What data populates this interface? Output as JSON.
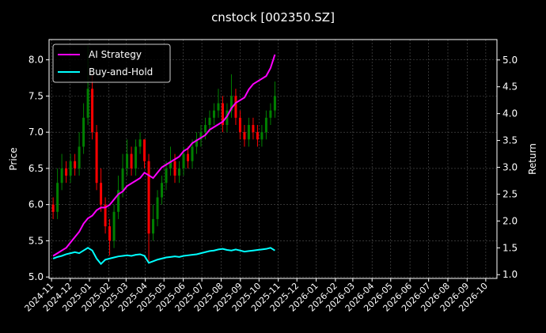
{
  "chart_data": {
    "type": "line",
    "title": "cnstock [002350.SZ]",
    "ylabel_left": "Price",
    "ylabel_right": "Return",
    "xlabel": "",
    "ylim_left": [
      4.98,
      8.28
    ],
    "ylim_right": [
      0.93,
      5.38
    ],
    "xlim": [
      "2024-10-28",
      "2026-10-19"
    ],
    "grid": true,
    "legend_position": "top-left",
    "yticks_left": [
      "5.0",
      "5.5",
      "6.0",
      "6.5",
      "7.0",
      "7.5",
      "8.0"
    ],
    "yticks_right": [
      "1.0",
      "1.5",
      "2.0",
      "2.5",
      "3.0",
      "3.5",
      "4.0",
      "4.5",
      "5.0"
    ],
    "xticks": [
      "2024-11",
      "2024-12",
      "2025-01",
      "2025-02",
      "2025-03",
      "2025-04",
      "2025-05",
      "2025-06",
      "2025-07",
      "2025-08",
      "2025-09",
      "2025-10",
      "2025-11",
      "2025-12",
      "2026-01",
      "2026-02",
      "2026-03",
      "2026-04",
      "2026-05",
      "2026-06",
      "2026-07",
      "2026-08",
      "2026-09",
      "2026-10"
    ],
    "colors": {
      "up": "#008000",
      "down": "#ff0000",
      "strategy": "#ff00ff",
      "buyhold": "#00ffff",
      "background": "#000000"
    },
    "candles": {
      "dates": [
        "2024-11-01",
        "2024-11-08",
        "2024-11-15",
        "2024-11-22",
        "2024-11-29",
        "2024-12-06",
        "2024-12-13",
        "2024-12-20",
        "2024-12-27",
        "2025-01-03",
        "2025-01-10",
        "2025-01-17",
        "2025-01-24",
        "2025-01-31",
        "2025-02-07",
        "2025-02-14",
        "2025-02-21",
        "2025-02-28",
        "2025-03-07",
        "2025-03-14",
        "2025-03-21",
        "2025-03-28",
        "2025-04-04",
        "2025-04-11",
        "2025-04-18",
        "2025-04-25",
        "2025-05-02",
        "2025-05-09",
        "2025-05-16",
        "2025-05-23",
        "2025-05-30",
        "2025-06-06",
        "2025-06-13",
        "2025-06-20",
        "2025-06-27",
        "2025-07-04",
        "2025-07-11",
        "2025-07-18",
        "2025-07-25",
        "2025-08-01",
        "2025-08-08",
        "2025-08-15",
        "2025-08-22",
        "2025-08-29",
        "2025-09-05",
        "2025-09-12",
        "2025-09-19",
        "2025-09-26",
        "2025-10-03",
        "2025-10-10",
        "2025-10-17",
        "2025-10-24"
      ],
      "open": [
        6.0,
        5.9,
        6.3,
        6.5,
        6.4,
        6.6,
        6.5,
        6.8,
        7.2,
        7.6,
        7.0,
        6.3,
        6.0,
        5.7,
        5.5,
        5.9,
        6.2,
        6.5,
        6.7,
        6.5,
        6.8,
        6.9,
        6.6,
        5.6,
        5.8,
        6.1,
        6.3,
        6.5,
        6.6,
        6.4,
        6.5,
        6.7,
        6.6,
        6.8,
        6.9,
        7.0,
        7.1,
        7.2,
        7.3,
        7.4,
        7.1,
        7.3,
        7.5,
        7.2,
        7.0,
        6.9,
        7.1,
        7.0,
        6.9,
        7.0,
        7.2,
        7.3
      ],
      "close": [
        5.9,
        6.3,
        6.5,
        6.4,
        6.6,
        6.5,
        6.8,
        7.2,
        7.6,
        7.0,
        6.3,
        6.0,
        5.7,
        5.5,
        5.9,
        6.2,
        6.5,
        6.7,
        6.5,
        6.8,
        6.9,
        6.6,
        5.6,
        5.8,
        6.1,
        6.3,
        6.5,
        6.6,
        6.4,
        6.5,
        6.7,
        6.6,
        6.8,
        6.9,
        7.0,
        7.1,
        7.2,
        7.3,
        7.4,
        7.1,
        7.3,
        7.5,
        7.2,
        7.0,
        6.9,
        7.1,
        7.0,
        6.9,
        7.0,
        7.2,
        7.3,
        7.5
      ],
      "high": [
        6.1,
        6.5,
        6.7,
        6.6,
        6.7,
        6.7,
        7.0,
        7.4,
        8.2,
        7.8,
        7.1,
        6.5,
        6.1,
        5.8,
        6.0,
        6.4,
        6.7,
        6.9,
        6.8,
        6.9,
        7.0,
        6.9,
        6.7,
        6.0,
        6.2,
        6.4,
        6.6,
        6.8,
        6.7,
        6.6,
        6.8,
        6.8,
        6.9,
        7.0,
        7.1,
        7.2,
        7.3,
        7.4,
        7.6,
        7.5,
        7.4,
        7.8,
        7.6,
        7.3,
        7.1,
        7.2,
        7.2,
        7.1,
        7.1,
        7.3,
        7.4,
        7.7
      ],
      "low": [
        5.8,
        5.8,
        6.2,
        6.3,
        6.3,
        6.4,
        6.4,
        6.7,
        7.1,
        6.9,
        6.2,
        5.9,
        5.6,
        5.3,
        5.4,
        5.8,
        6.1,
        6.4,
        6.4,
        6.4,
        6.7,
        6.5,
        5.2,
        5.5,
        5.7,
        6.0,
        6.2,
        6.4,
        6.3,
        6.3,
        6.4,
        6.5,
        6.5,
        6.7,
        6.8,
        6.9,
        7.0,
        7.1,
        7.2,
        7.0,
        7.0,
        7.2,
        7.1,
        6.9,
        6.8,
        6.8,
        6.9,
        6.8,
        6.8,
        6.9,
        7.1,
        7.2
      ]
    },
    "series": [
      {
        "name": "AI Strategy",
        "axis": "right",
        "values": [
          1.35,
          1.4,
          1.45,
          1.5,
          1.6,
          1.7,
          1.8,
          1.95,
          2.05,
          2.1,
          2.2,
          2.25,
          2.25,
          2.3,
          2.4,
          2.5,
          2.55,
          2.65,
          2.7,
          2.75,
          2.8,
          2.9,
          2.85,
          2.8,
          2.9,
          3.0,
          3.05,
          3.1,
          3.15,
          3.2,
          3.3,
          3.35,
          3.45,
          3.5,
          3.55,
          3.6,
          3.7,
          3.75,
          3.8,
          3.85,
          3.95,
          4.1,
          4.2,
          4.25,
          4.3,
          4.45,
          4.55,
          4.6,
          4.65,
          4.7,
          4.85,
          5.1
        ]
      },
      {
        "name": "Buy-and-Hold",
        "axis": "right",
        "values": [
          1.3,
          1.33,
          1.35,
          1.38,
          1.4,
          1.42,
          1.4,
          1.45,
          1.5,
          1.45,
          1.3,
          1.2,
          1.28,
          1.3,
          1.32,
          1.34,
          1.35,
          1.36,
          1.35,
          1.37,
          1.38,
          1.35,
          1.22,
          1.25,
          1.28,
          1.3,
          1.32,
          1.33,
          1.34,
          1.33,
          1.35,
          1.36,
          1.37,
          1.38,
          1.4,
          1.42,
          1.44,
          1.45,
          1.47,
          1.48,
          1.46,
          1.45,
          1.47,
          1.45,
          1.43,
          1.44,
          1.45,
          1.46,
          1.47,
          1.48,
          1.5,
          1.45
        ]
      }
    ]
  }
}
